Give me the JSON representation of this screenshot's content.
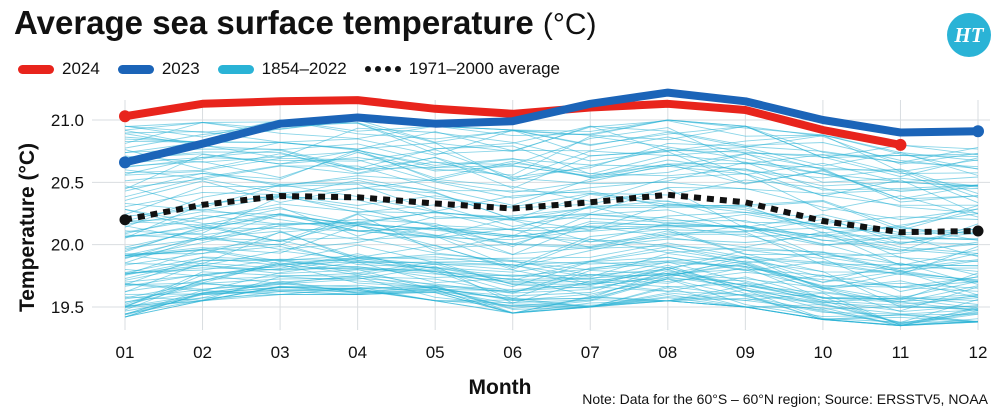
{
  "header": {
    "title": "Average sea surface temperature",
    "title_unit": "(°C)",
    "logo_text": "HT"
  },
  "legend": [
    {
      "label": "2024",
      "color": "#e8241c",
      "style": "solid"
    },
    {
      "label": "2023",
      "color": "#1b64b8",
      "style": "solid"
    },
    {
      "label": "1854–2022",
      "color": "#2ab3d6",
      "style": "solid"
    },
    {
      "label": "1971–2000 average",
      "color": "#111111",
      "style": "dotted"
    }
  ],
  "note": "Note: Data for the 60°S – 60°N region; Source: ERSSTV5, NOAA",
  "chart_data": {
    "type": "line",
    "title": "Average sea surface temperature (°C)",
    "xlabel": "Month",
    "ylabel": "Temperature (°C)",
    "categories": [
      "01",
      "02",
      "03",
      "04",
      "05",
      "06",
      "07",
      "08",
      "09",
      "10",
      "11",
      "12"
    ],
    "yticks": [
      "21.0",
      "20.5",
      "20.0",
      "19.5"
    ],
    "ylim": [
      19.45,
      21.1
    ],
    "grid": true,
    "series": [
      {
        "name": "2024",
        "color": "#e8241c",
        "values": [
          21.03,
          21.13,
          21.15,
          21.16,
          21.09,
          21.05,
          21.1,
          21.13,
          21.08,
          20.92,
          20.8,
          null
        ]
      },
      {
        "name": "2023",
        "color": "#1b64b8",
        "values": [
          20.66,
          20.81,
          20.97,
          21.02,
          20.97,
          20.99,
          21.13,
          21.22,
          21.15,
          21.0,
          20.9,
          20.91
        ]
      },
      {
        "name": "1971–2000 average",
        "color": "#111111",
        "style": "dotted",
        "values": [
          20.2,
          20.32,
          20.39,
          20.38,
          20.33,
          20.29,
          20.34,
          20.4,
          20.34,
          20.19,
          20.1,
          20.11
        ]
      }
    ],
    "historical_band": {
      "name": "1854–2022",
      "color": "#2ab3d6",
      "low": [
        19.42,
        19.55,
        19.6,
        19.6,
        19.55,
        19.45,
        19.5,
        19.55,
        19.5,
        19.4,
        19.35,
        19.38
      ],
      "high": [
        20.95,
        20.98,
        21.0,
        21.0,
        20.95,
        20.92,
        20.95,
        21.0,
        20.95,
        20.88,
        20.8,
        20.78
      ]
    }
  }
}
